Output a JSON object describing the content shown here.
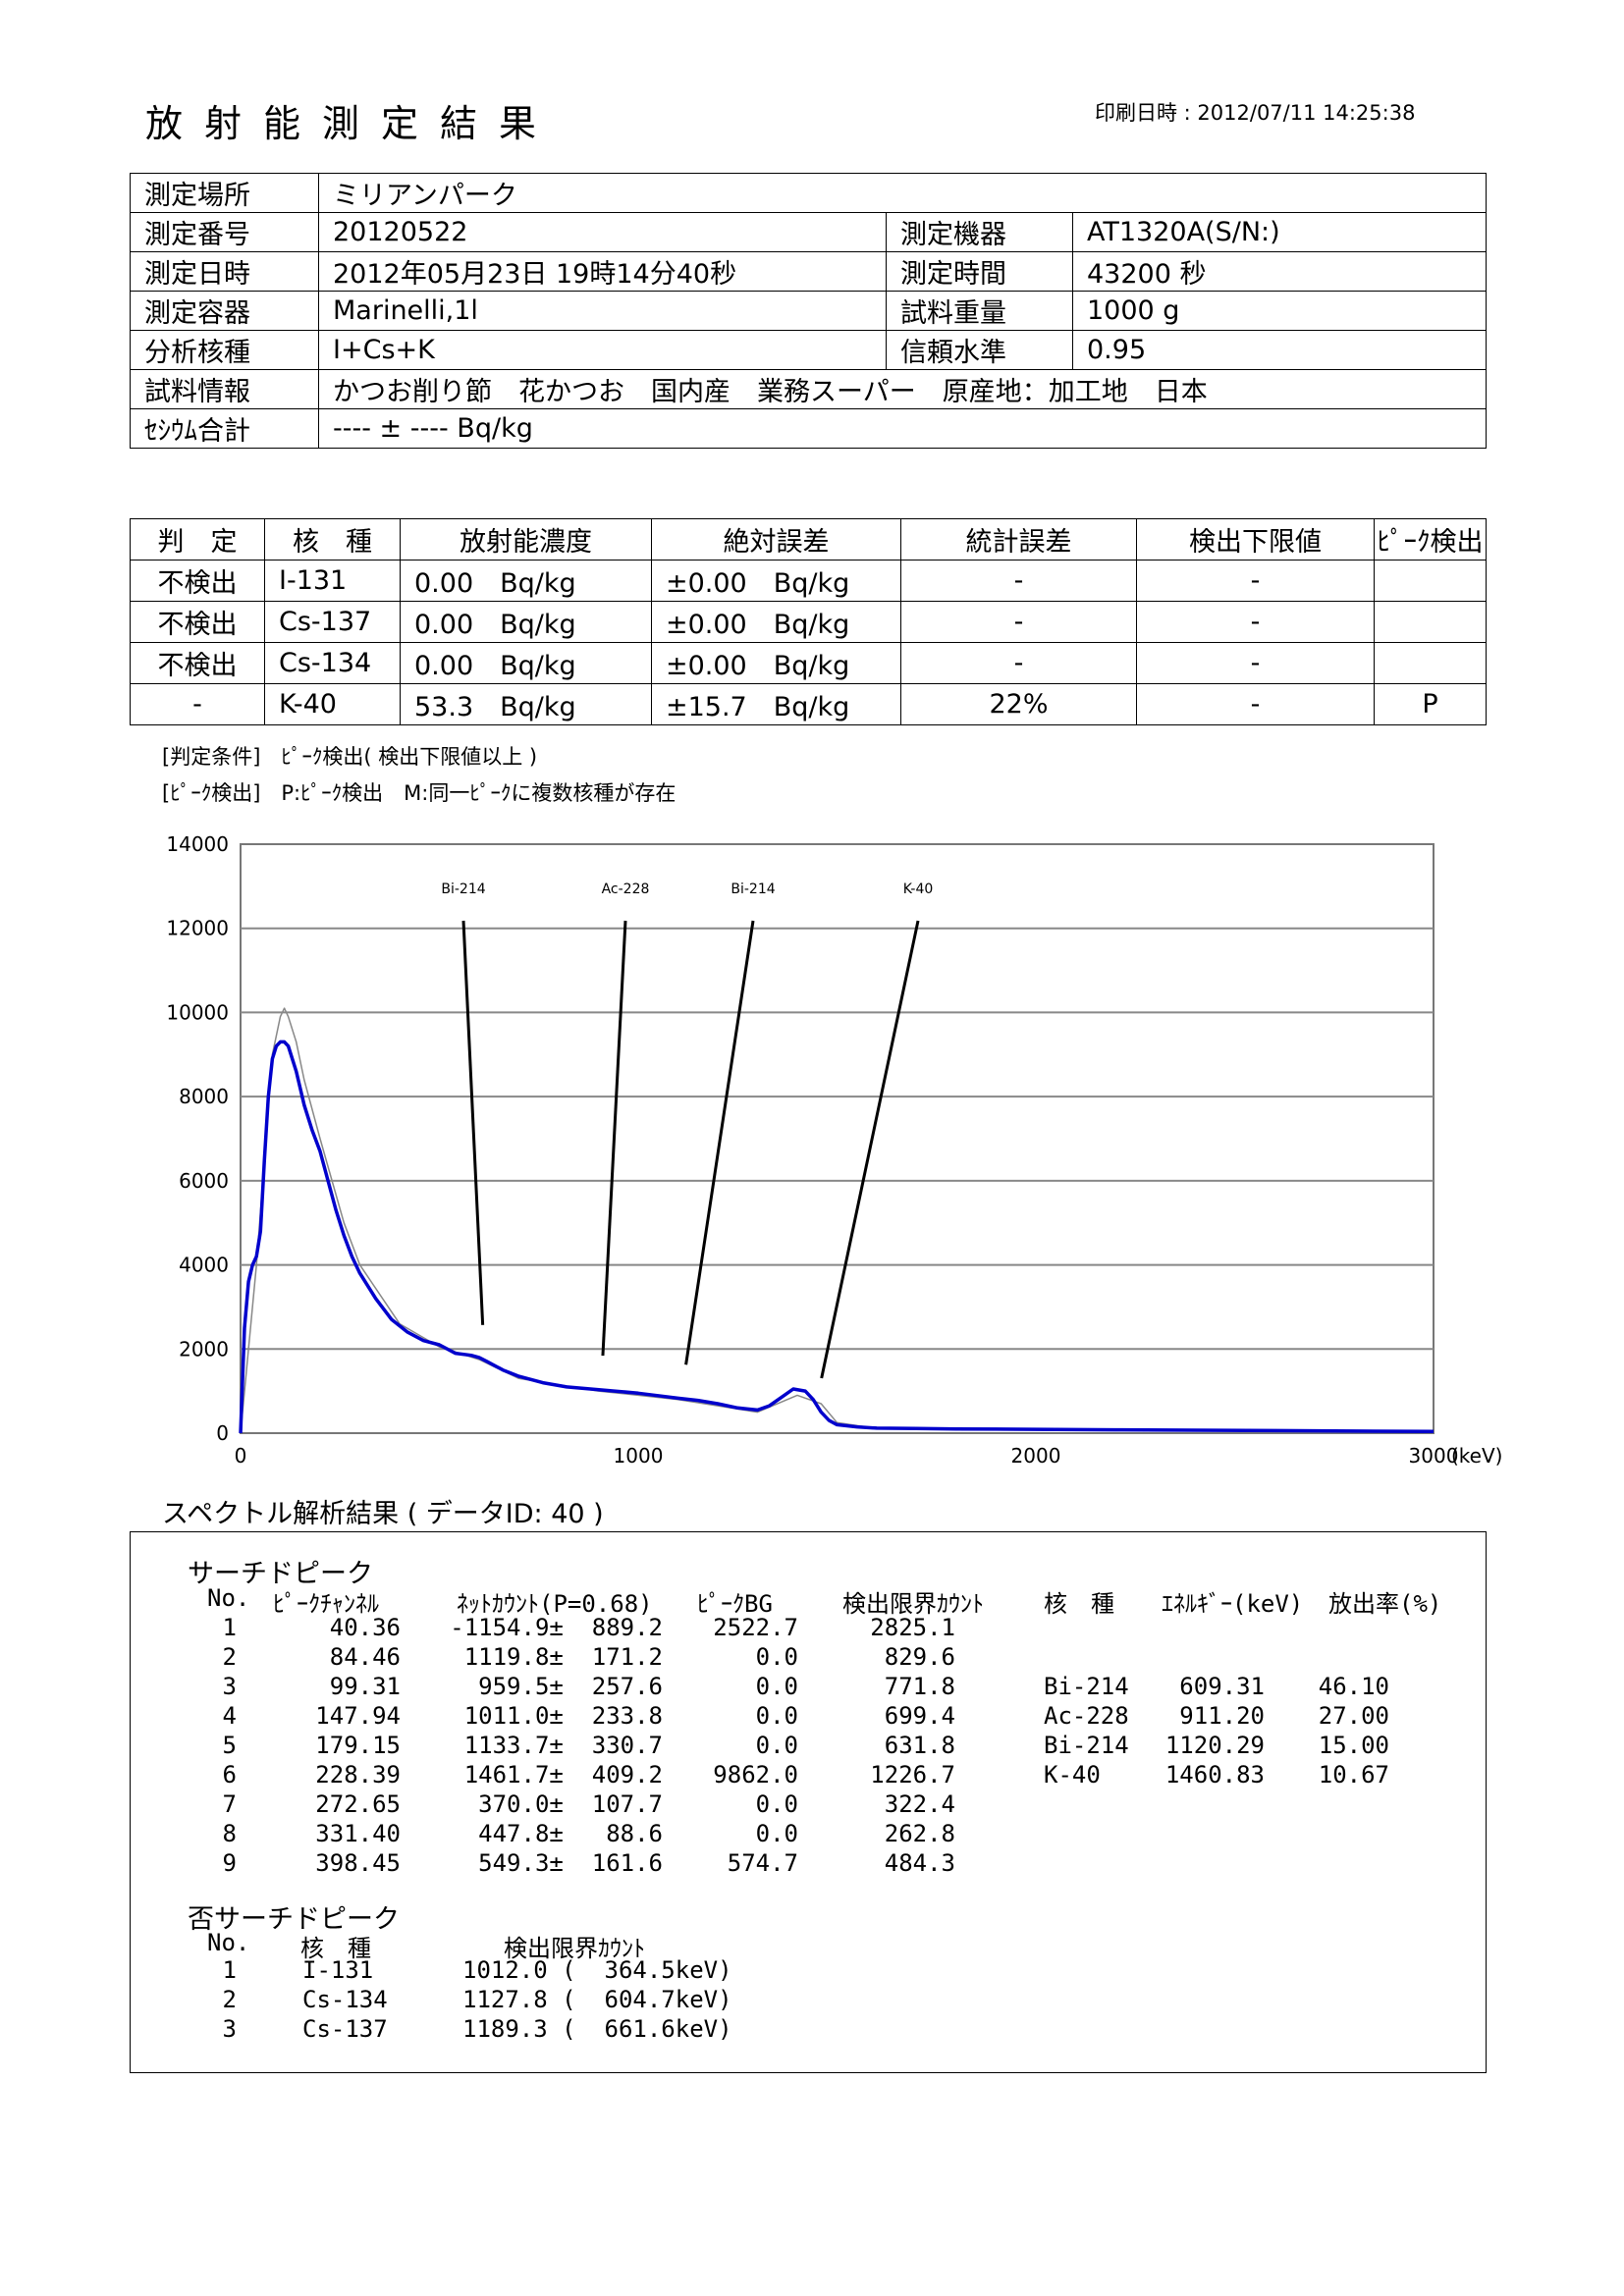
{
  "header": {
    "title": "放射能測定結果",
    "printed": "印刷日時 : 2012/07/11 14:25:38"
  },
  "info": {
    "place_label": "測定場所",
    "place": "ミリアンパーク",
    "number_label": "測定番号",
    "number": "20120522",
    "device_label": "測定機器",
    "device": "AT1320A(S/N:)",
    "date_label": "測定日時",
    "date": "2012年05月23日 19時14分40秒",
    "time_label": "測定時間",
    "time": "43200 秒",
    "container_label": "測定容器",
    "container": "Marinelli,1l",
    "weight_label": "試料重量",
    "weight": "1000 g",
    "nuclide_label": "分析核種",
    "nuclide": "I+Cs+K",
    "confidence_label": "信頼水準",
    "confidence": "0.95",
    "sample_label": "試料情報",
    "sample": "かつお削り節　花かつお　国内産　業務スーパー　原産地：加工地　日本",
    "cesium_label": "ｾｼｳﾑ合計",
    "cesium": "---- ± ---- Bq/kg"
  },
  "results": {
    "headers": [
      "判　定",
      "核　種",
      "放射能濃度",
      "絶対誤差",
      "統計誤差",
      "検出下限値",
      "ﾋﾟｰｸ検出"
    ],
    "rows": [
      [
        "不検出",
        "I-131",
        "0.00　Bq/kg",
        "±0.00　Bq/kg",
        "-",
        "-",
        ""
      ],
      [
        "不検出",
        "Cs-137",
        "0.00　Bq/kg",
        "±0.00　Bq/kg",
        "-",
        "-",
        ""
      ],
      [
        "不検出",
        "Cs-134",
        "0.00　Bq/kg",
        "±0.00　Bq/kg",
        "-",
        "-",
        ""
      ],
      [
        "-",
        "K-40",
        "53.3　Bq/kg",
        "±15.7　Bq/kg",
        "22%",
        "-",
        "P"
      ]
    ],
    "note1": "[判定条件]　ﾋﾟｰｸ検出( 検出下限値以上 )",
    "note2": "[ﾋﾟｰｸ検出]　P:ﾋﾟｰｸ検出　M:同一ﾋﾟｰｸに複数核種が存在"
  },
  "chart_data": {
    "type": "line",
    "xlim": [
      0,
      3000
    ],
    "ylim": [
      0,
      14000
    ],
    "x_ticks": [
      "0",
      "1000",
      "2000",
      "3000"
    ],
    "y_ticks": [
      "0",
      "2000",
      "4000",
      "6000",
      "8000",
      "10000",
      "12000",
      "14000"
    ],
    "x_unit": "(keV)",
    "grid": true,
    "peak_labels": [
      {
        "label": "Bi-214",
        "energy": 609
      },
      {
        "label": "Ac-228",
        "energy": 911
      },
      {
        "label": "Bi-214",
        "energy": 1120
      },
      {
        "label": "K-40",
        "energy": 1461
      }
    ],
    "series": [
      {
        "color": "#0000cc",
        "x": [
          0,
          10,
          20,
          30,
          40,
          50,
          60,
          70,
          80,
          90,
          100,
          110,
          120,
          140,
          160,
          180,
          200,
          220,
          240,
          260,
          280,
          300,
          340,
          380,
          420,
          460,
          500,
          540,
          580,
          600,
          620,
          640,
          660,
          700,
          760,
          820,
          880,
          940,
          1000,
          1060,
          1100,
          1150,
          1200,
          1250,
          1300,
          1330,
          1360,
          1390,
          1420,
          1440,
          1460,
          1480,
          1500,
          1550,
          1600,
          1700,
          1800,
          2000,
          2200,
          2400,
          2600,
          2800,
          3000
        ],
        "y": [
          0,
          2500,
          3600,
          4000,
          4200,
          4800,
          6500,
          8000,
          8900,
          9200,
          9300,
          9300,
          9200,
          8600,
          7800,
          7200,
          6700,
          6000,
          5300,
          4700,
          4200,
          3800,
          3200,
          2700,
          2400,
          2200,
          2100,
          1900,
          1850,
          1800,
          1700,
          1600,
          1500,
          1350,
          1200,
          1100,
          1050,
          1000,
          950,
          880,
          830,
          780,
          700,
          600,
          550,
          650,
          850,
          1050,
          1000,
          800,
          500,
          300,
          200,
          150,
          120,
          110,
          100,
          90,
          80,
          70,
          60,
          50,
          40
        ]
      },
      {
        "color": "#888888",
        "x": [
          0,
          40,
          80,
          100,
          110,
          120,
          140,
          160,
          200,
          260,
          300,
          400,
          500,
          600,
          700,
          800,
          900,
          1000,
          1100,
          1200,
          1300,
          1400,
          1460,
          1500,
          1600,
          2000,
          3000
        ],
        "y": [
          0,
          4000,
          9000,
          9900,
          10100,
          9900,
          9300,
          8400,
          7000,
          5000,
          4000,
          2600,
          2050,
          1750,
          1300,
          1150,
          1000,
          900,
          800,
          650,
          500,
          900,
          700,
          250,
          110,
          80,
          40
        ]
      }
    ]
  },
  "spectrum": {
    "title": "スペクトル解析結果 ( データID: 40 )",
    "search_title": "サーチドピーク",
    "search_headers": [
      "No.",
      "ﾋﾟｰｸﾁｬﾝﾈﾙ",
      "ﾈｯﾄｶｳﾝﾄ(P=0.68)",
      "ﾋﾟｰｸBG",
      "検出限界ｶｳﾝﾄ",
      "核　種",
      "ｴﾈﾙｷﾞｰ(keV)",
      "放出率(%)"
    ],
    "search_rows": [
      [
        "1",
        "40.36",
        "-1154.9±  889.2",
        "2522.7",
        "2825.1",
        "",
        "",
        ""
      ],
      [
        "2",
        "84.46",
        "1119.8±  171.2",
        "0.0",
        "829.6",
        "",
        "",
        ""
      ],
      [
        "3",
        "99.31",
        "959.5±  257.6",
        "0.0",
        "771.8",
        "Bi-214",
        "609.31",
        "46.10"
      ],
      [
        "4",
        "147.94",
        "1011.0±  233.8",
        "0.0",
        "699.4",
        "Ac-228",
        "911.20",
        "27.00"
      ],
      [
        "5",
        "179.15",
        "1133.7±  330.7",
        "0.0",
        "631.8",
        "Bi-214",
        "1120.29",
        "15.00"
      ],
      [
        "6",
        "228.39",
        "1461.7±  409.2",
        "9862.0",
        "1226.7",
        "K-40",
        "1460.83",
        "10.67"
      ],
      [
        "7",
        "272.65",
        "370.0±  107.7",
        "0.0",
        "322.4",
        "",
        "",
        ""
      ],
      [
        "8",
        "331.40",
        "447.8±   88.6",
        "0.0",
        "262.8",
        "",
        "",
        ""
      ],
      [
        "9",
        "398.45",
        "549.3±  161.6",
        "574.7",
        "484.3",
        "",
        "",
        ""
      ]
    ],
    "non_title": "否サーチドピーク",
    "non_headers": [
      "No.",
      "核　種",
      "検出限界ｶｳﾝﾄ"
    ],
    "non_rows": [
      [
        "1",
        "I-131",
        "1012.0 (  364.5keV)"
      ],
      [
        "2",
        "Cs-134",
        "1127.8 (  604.7keV)"
      ],
      [
        "3",
        "Cs-137",
        "1189.3 (  661.6keV)"
      ]
    ]
  }
}
